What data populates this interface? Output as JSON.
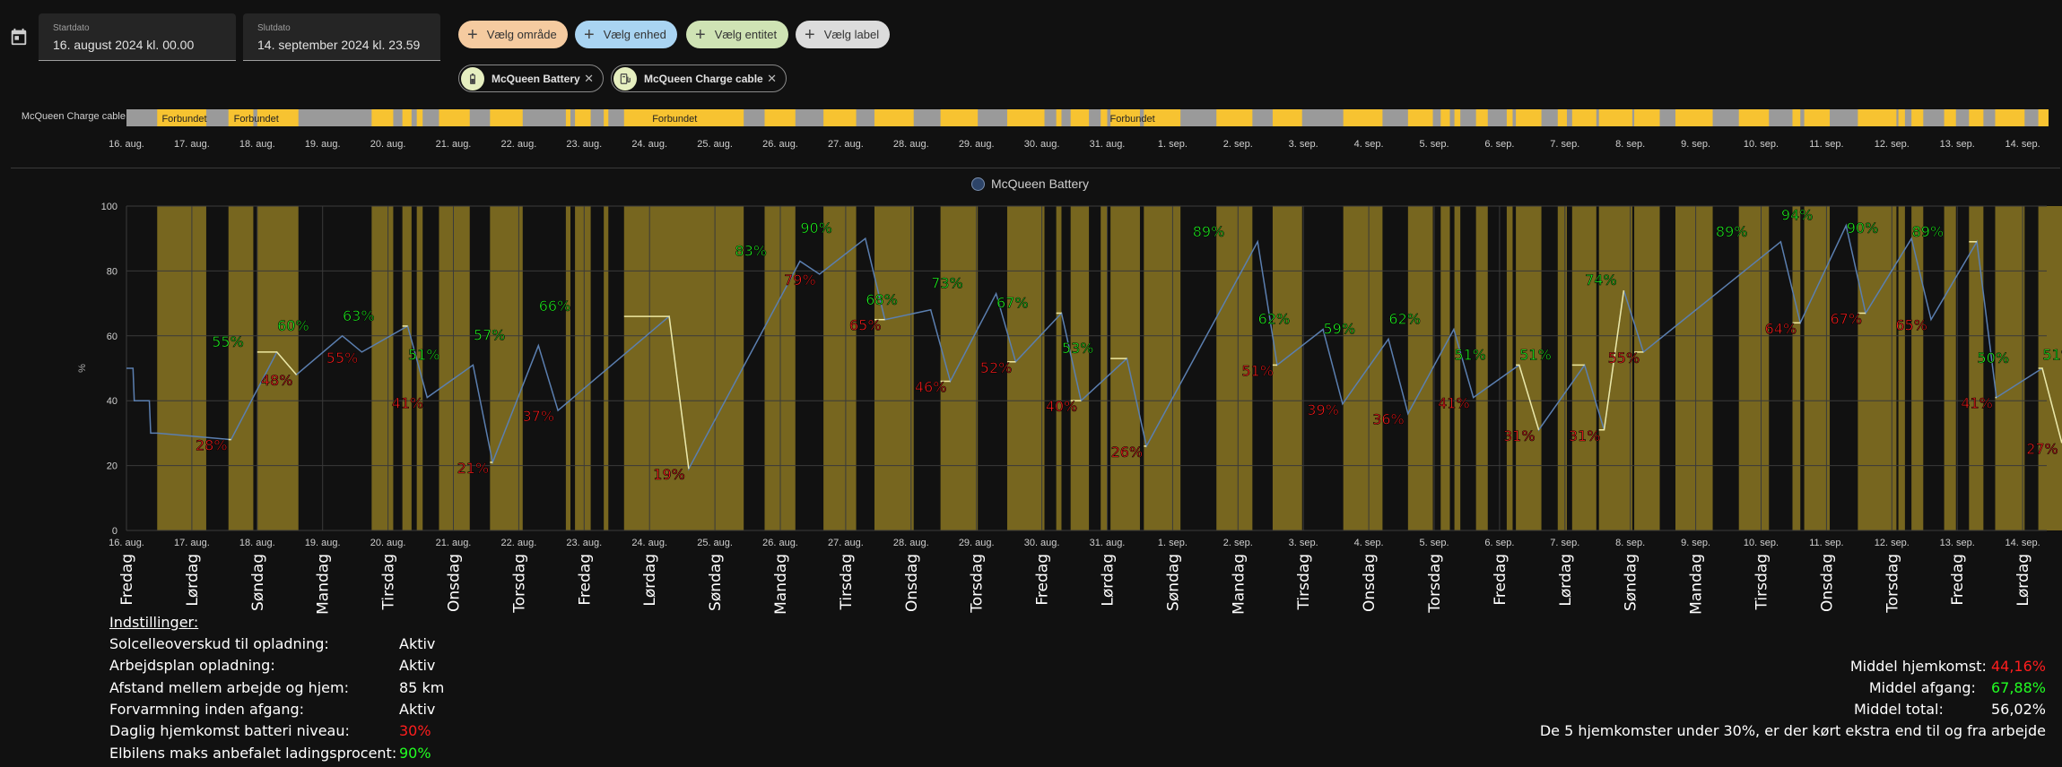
{
  "start_date": {
    "label": "Startdato",
    "value": "16. august 2024 kl. 00.00"
  },
  "end_date": {
    "label": "Slutdato",
    "value": "14. september 2024 kl. 23.59"
  },
  "filters": [
    {
      "label": "Vælg område",
      "color": "#f5cba0"
    },
    {
      "label": "Vælg enhed",
      "color": "#a9d4f2"
    },
    {
      "label": "Vælg entitet",
      "color": "#cfe3b4"
    },
    {
      "label": "Vælg label",
      "color": "#dcdcdc"
    }
  ],
  "entities": [
    {
      "label": "McQueen Battery",
      "icon": "battery-icon"
    },
    {
      "label": "McQueen Charge cable",
      "icon": "ev-charger-icon"
    }
  ],
  "timeline": {
    "entity": "McQueen Charge cable",
    "state_label": "Forbundet",
    "colors": {
      "on": "#f7c331",
      "off": "#9a9a9a"
    }
  },
  "date_ticks": [
    "16. aug.",
    "17. aug.",
    "18. aug.",
    "19. aug.",
    "20. aug.",
    "21. aug.",
    "22. aug.",
    "23. aug.",
    "24. aug.",
    "25. aug.",
    "26. aug.",
    "27. aug.",
    "28. aug.",
    "29. aug.",
    "30. aug.",
    "31. aug.",
    "1. sep.",
    "2. sep.",
    "3. sep.",
    "4. sep.",
    "5. sep.",
    "6. sep.",
    "7. sep.",
    "8. sep.",
    "9. sep.",
    "10. sep.",
    "11. sep.",
    "12. sep.",
    "13. sep.",
    "14. sep."
  ],
  "weekdays": [
    "Fredag",
    "Lørdag",
    "Søndag",
    "Mandag",
    "Tirsdag",
    "Onsdag",
    "Torsdag",
    "Fredag",
    "Lørdag",
    "Søndag",
    "Mandag",
    "Tirsdag",
    "Onsdag",
    "Torsdag",
    "Fredag",
    "Lørdag",
    "Søndag",
    "Mandag",
    "Tirsdag",
    "Onsdag",
    "Torsdag",
    "Fredag",
    "Lørdag",
    "Søndag",
    "Mandag",
    "Tirsdag",
    "Onsdag",
    "Torsdag",
    "Fredag",
    "Lørdag"
  ],
  "chart_data": {
    "type": "line",
    "series": [
      {
        "name": "McQueen Battery",
        "color": "#5b7fb0",
        "charging_color": "#f0e9a0"
      }
    ],
    "ylim": [
      0,
      100
    ],
    "yticks": [
      0,
      20,
      40,
      60,
      80,
      100
    ],
    "ylabel": "%",
    "grid": true,
    "legend": "top-center",
    "charging_shade_color": "#8a7522",
    "day_values": [
      {
        "day": 0,
        "departure": null,
        "arrival": null
      },
      {
        "day": 1,
        "departure": 55,
        "arrival": 28
      },
      {
        "day": 2,
        "departure": 60,
        "arrival": 48
      },
      {
        "day": 3,
        "departure": 63,
        "arrival": 55
      },
      {
        "day": 4,
        "departure": 51,
        "arrival": 41
      },
      {
        "day": 5,
        "departure": 57,
        "arrival": 21
      },
      {
        "day": 6,
        "departure": 66,
        "arrival": 37
      },
      {
        "day": 8,
        "departure": null,
        "arrival": 19
      },
      {
        "day": 9,
        "departure": 83,
        "arrival": null
      },
      {
        "day": 10,
        "departure": 90,
        "arrival": 79
      },
      {
        "day": 11,
        "departure": 68,
        "arrival": 65
      },
      {
        "day": 12,
        "departure": 73,
        "arrival": 46
      },
      {
        "day": 13,
        "departure": 67,
        "arrival": 52
      },
      {
        "day": 14,
        "departure": 53,
        "arrival": 40
      },
      {
        "day": 15,
        "departure": null,
        "arrival": 26
      },
      {
        "day": 16,
        "departure": 89,
        "arrival": null
      },
      {
        "day": 17,
        "departure": 62,
        "arrival": 51
      },
      {
        "day": 18,
        "departure": 59,
        "arrival": 39
      },
      {
        "day": 19,
        "departure": 62,
        "arrival": 36
      },
      {
        "day": 20,
        "departure": 51,
        "arrival": 41
      },
      {
        "day": 21,
        "departure": 51,
        "arrival": 31
      },
      {
        "day": 22,
        "departure": 74,
        "arrival": 31
      },
      {
        "day": 22.6,
        "departure": null,
        "arrival": 55
      },
      {
        "day": 24,
        "departure": 89,
        "arrival": null
      },
      {
        "day": 25,
        "departure": 94,
        "arrival": 64
      },
      {
        "day": 26,
        "departure": 90,
        "arrival": 67
      },
      {
        "day": 27,
        "departure": 89,
        "arrival": 65
      },
      {
        "day": 28,
        "departure": 50,
        "arrival": 41
      },
      {
        "day": 29,
        "departure": 51,
        "arrival": 27
      }
    ]
  },
  "settings": {
    "heading": "Indstillinger:",
    "rows": [
      {
        "label": "Solcelleoverskud til opladning:",
        "value": "Aktiv",
        "color": "#ffffff"
      },
      {
        "label": "Arbejdsplan opladning:",
        "value": "Aktiv",
        "color": "#ffffff"
      },
      {
        "label": "Afstand mellem arbejde og hjem:",
        "value": "85 km",
        "color": "#ffffff"
      },
      {
        "label": "Forvarmning inden afgang:",
        "value": "Aktiv",
        "color": "#ffffff"
      },
      {
        "label": "Daglig hjemkomst batteri niveau:",
        "value": "30%",
        "color": "#ff1e1e"
      },
      {
        "label": "Elbilens maks anbefalet ladingsprocent:",
        "value": "90%",
        "color": "#22ff22"
      }
    ]
  },
  "summary": {
    "arrival_label": "Middel hjemkomst:",
    "arrival_value": "44,16%",
    "arrival_color": "#ff1e1e",
    "departure_label": "Middel afgang:",
    "departure_value": "67,88%",
    "departure_color": "#22ff22",
    "total_label": "Middel total:",
    "total_value": "56,02%",
    "note": "De 5 hjemkomster under 30%, er der kørt ekstra end til og fra arbejde"
  }
}
